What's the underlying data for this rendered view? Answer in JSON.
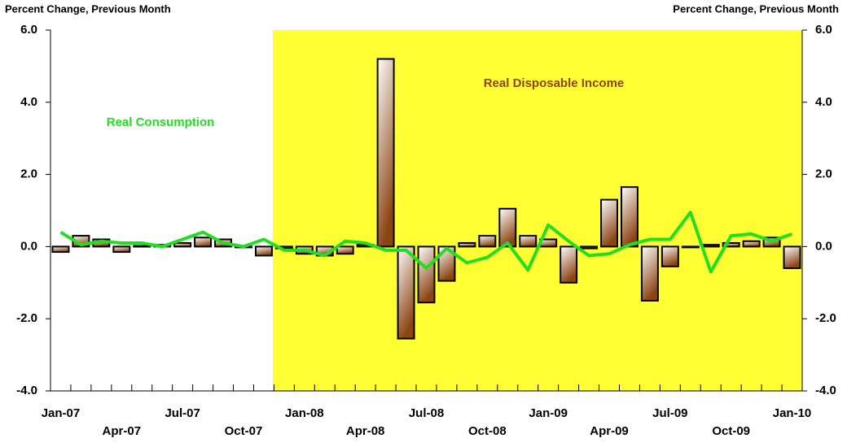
{
  "chart_data": {
    "type": "bar_line",
    "y_label": "Percent Change, Previous Month",
    "y2_label": "Percent Change, Previous Month",
    "categories": [
      "Jan-07",
      null,
      null,
      "Apr-07",
      null,
      null,
      "Jul-07",
      null,
      null,
      "Oct-07",
      null,
      null,
      "Jan-08",
      null,
      null,
      "Apr-08",
      null,
      null,
      "Jul-08",
      null,
      null,
      "Oct-08",
      null,
      null,
      "Jan-09",
      null,
      null,
      "Apr-09",
      null,
      null,
      "Jul-09",
      null,
      null,
      "Oct-09",
      null,
      null,
      "Jan-10"
    ],
    "series": [
      {
        "name": "Real Disposable Income",
        "type": "bar",
        "color": "#8b4513",
        "values": [
          -0.15,
          0.3,
          0.2,
          -0.15,
          0.02,
          0.05,
          0.1,
          0.25,
          0.2,
          0.0,
          -0.25,
          -0.05,
          -0.2,
          -0.25,
          -0.2,
          0.05,
          5.2,
          -2.55,
          -1.55,
          -0.95,
          0.1,
          0.3,
          1.05,
          0.3,
          0.2,
          -1.0,
          -0.05,
          1.3,
          1.65,
          -1.5,
          -0.55,
          0.0,
          0.05,
          0.1,
          0.15,
          0.25,
          -0.6
        ]
      },
      {
        "name": "Real Consumption",
        "type": "line",
        "color": "#22dd22",
        "values": [
          0.4,
          0.05,
          0.15,
          0.1,
          0.1,
          0.0,
          0.2,
          0.4,
          0.1,
          0.0,
          0.2,
          -0.1,
          -0.1,
          -0.25,
          0.15,
          0.1,
          -0.1,
          -0.1,
          -0.6,
          -0.05,
          -0.45,
          -0.3,
          0.1,
          -0.65,
          0.6,
          0.15,
          -0.25,
          -0.2,
          0.05,
          0.2,
          0.2,
          0.95,
          -0.7,
          0.3,
          0.35,
          0.15,
          0.35
        ]
      }
    ],
    "ylim": [
      -4,
      6
    ],
    "yticks": [
      {
        "value": -4,
        "label": "-4.0"
      },
      {
        "value": -2,
        "label": "-2.0"
      },
      {
        "value": 0,
        "label": "0.0"
      },
      {
        "value": 2,
        "label": "2.0"
      },
      {
        "value": 4,
        "label": "4.0"
      },
      {
        "value": 6,
        "label": "6.0"
      }
    ],
    "y2lim": [
      -4,
      6
    ],
    "y2ticks": [
      {
        "value": -4,
        "label": "-4.0"
      },
      {
        "value": -2,
        "label": "-2.0"
      },
      {
        "value": 0,
        "label": "0.0"
      },
      {
        "value": 2,
        "label": "2.0"
      },
      {
        "value": 4,
        "label": "4.0"
      },
      {
        "value": 6,
        "label": "6.0"
      }
    ]
  }
}
